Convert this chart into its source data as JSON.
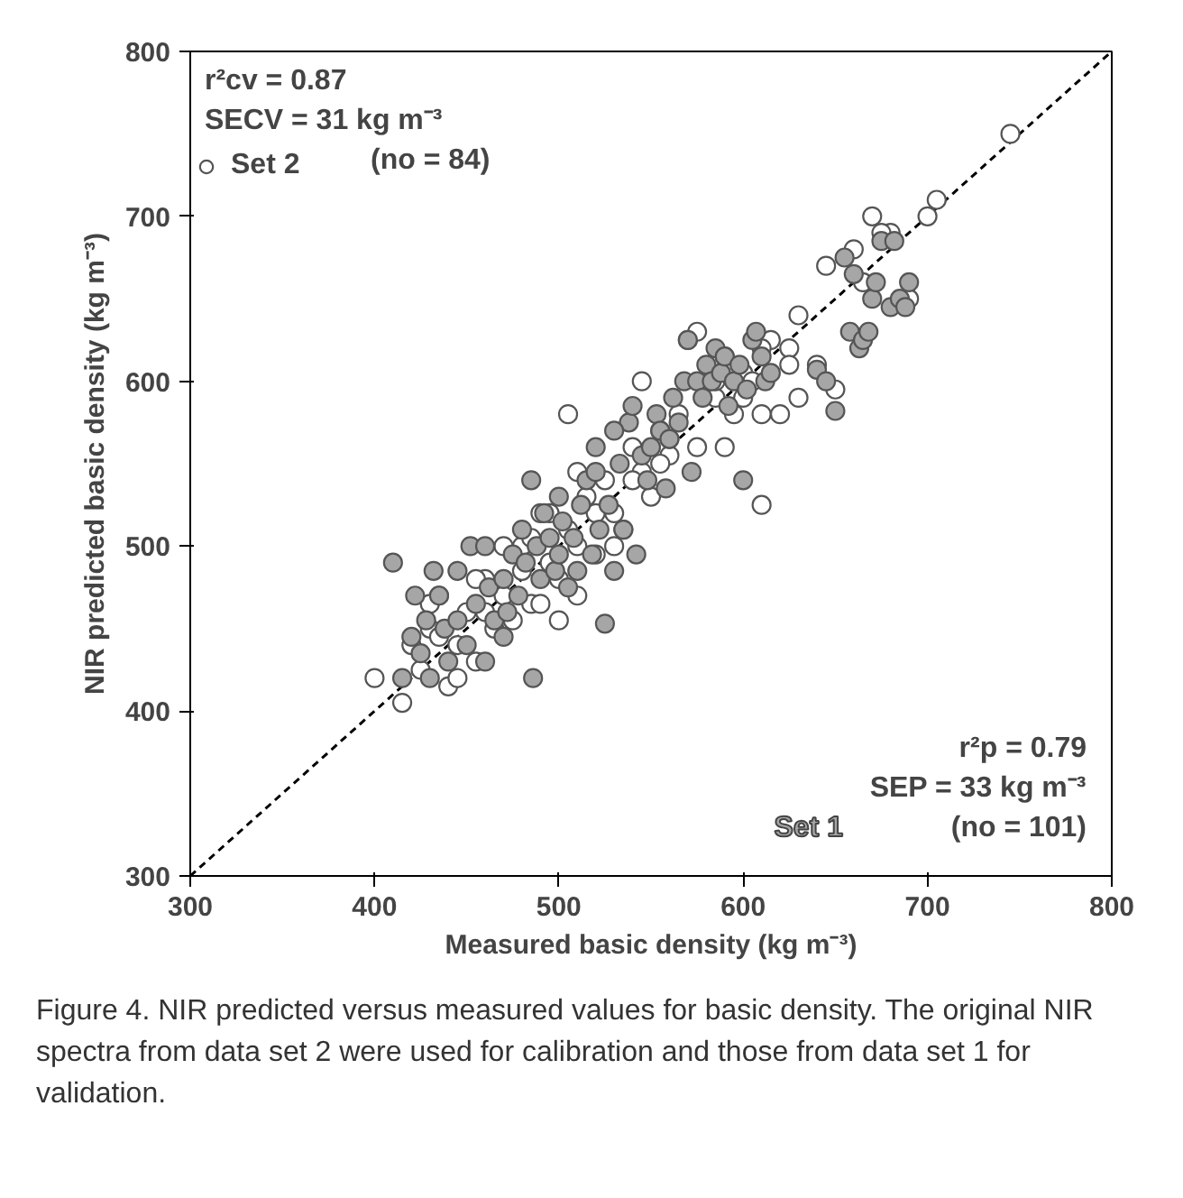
{
  "chart_data": {
    "type": "scatter",
    "xlabel": "Measured basic density (kg m⁻³)",
    "ylabel": "NIR predicted basic density (kg m⁻³)",
    "xlim": [
      300,
      800
    ],
    "ylim": [
      300,
      800
    ],
    "xticks": [
      300,
      400,
      500,
      600,
      700,
      800
    ],
    "yticks": [
      300,
      400,
      500,
      600,
      700,
      800
    ],
    "grid": false,
    "marker": "circle",
    "legend": "top left",
    "annotations": [
      "r²cv = 0.87",
      "SECV = 31 kg m⁻³",
      "(no = 84)",
      "r²p = 0.79",
      "SEP = 33 kg m⁻³",
      "(no = 101)",
      "Figure 4. NIR predicted versus measured values for basic density. The original NIR spectra from data set 2 were used for calibration and those from data set 1 for validation."
    ],
    "series": [
      {
        "type": "line",
        "color": "#000000",
        "line_style": "dashed",
        "marker": "none",
        "x": [
          300,
          800
        ],
        "values": [
          300,
          800
        ]
      },
      {
        "name": "Set 2",
        "color": "#ffffff",
        "x": [
          400,
          415,
          420,
          425,
          430,
          435,
          440,
          445,
          450,
          455,
          460,
          465,
          470,
          475,
          480,
          485,
          490,
          495,
          500,
          505,
          510,
          515,
          520,
          525,
          530,
          535,
          540,
          545,
          550,
          555,
          560,
          565,
          570,
          575,
          630,
          585,
          590,
          595,
          600,
          605,
          610,
          615,
          620,
          625,
          630,
          640,
          645,
          650,
          660,
          665,
          670,
          680,
          690,
          700,
          705,
          745,
          610,
          455,
          470,
          485,
          500,
          510,
          520,
          530,
          545,
          560,
          575,
          590,
          600,
          610,
          435,
          445,
          460,
          480,
          495,
          510,
          540,
          555,
          585,
          625,
          675,
          505,
          490,
          430
        ],
        "values": [
          420,
          405,
          440,
          425,
          450,
          470,
          415,
          440,
          460,
          430,
          480,
          450,
          470,
          455,
          500,
          465,
          520,
          490,
          480,
          510,
          500,
          530,
          495,
          540,
          520,
          510,
          560,
          545,
          530,
          570,
          555,
          580,
          625,
          560,
          590,
          590,
          615,
          580,
          605,
          600,
          580,
          625,
          580,
          620,
          640,
          610,
          670,
          595,
          680,
          660,
          700,
          690,
          650,
          700,
          710,
          750,
          525,
          480,
          500,
          505,
          455,
          470,
          520,
          500,
          600,
          565,
          630,
          560,
          590,
          620,
          445,
          420,
          460,
          485,
          520,
          545,
          540,
          550,
          600,
          610,
          690,
          580,
          465,
          465
        ]
      },
      {
        "name": "Set 1",
        "color": "#a6a6a6",
        "x": [
          410,
          415,
          420,
          422,
          425,
          428,
          430,
          432,
          435,
          438,
          440,
          445,
          450,
          452,
          455,
          460,
          462,
          465,
          470,
          472,
          475,
          478,
          480,
          482,
          485,
          486,
          488,
          490,
          492,
          495,
          498,
          500,
          502,
          505,
          508,
          510,
          512,
          515,
          518,
          520,
          522,
          525,
          527,
          530,
          533,
          535,
          538,
          540,
          542,
          545,
          548,
          550,
          553,
          555,
          558,
          560,
          562,
          565,
          568,
          570,
          572,
          575,
          578,
          580,
          583,
          585,
          588,
          590,
          592,
          595,
          598,
          600,
          602,
          605,
          607,
          610,
          612,
          615,
          640,
          645,
          650,
          655,
          658,
          660,
          663,
          665,
          668,
          670,
          672,
          675,
          680,
          682,
          685,
          688,
          690,
          520,
          470,
          445,
          460,
          500,
          530
        ],
        "values": [
          490,
          420,
          445,
          470,
          435,
          455,
          420,
          485,
          470,
          450,
          430,
          455,
          440,
          500,
          465,
          500,
          475,
          455,
          480,
          460,
          495,
          470,
          510,
          490,
          540,
          420,
          500,
          480,
          520,
          505,
          485,
          495,
          515,
          475,
          505,
          485,
          525,
          540,
          495,
          560,
          510,
          453,
          525,
          485,
          550,
          510,
          575,
          585,
          495,
          555,
          540,
          560,
          580,
          570,
          535,
          565,
          590,
          575,
          600,
          625,
          545,
          600,
          590,
          610,
          600,
          620,
          605,
          615,
          585,
          600,
          610,
          540,
          595,
          625,
          630,
          615,
          600,
          605,
          607,
          600,
          582,
          675,
          630,
          665,
          620,
          625,
          630,
          650,
          660,
          685,
          645,
          685,
          650,
          645,
          660,
          545,
          445,
          485,
          430,
          530,
          570
        ]
      }
    ]
  }
}
